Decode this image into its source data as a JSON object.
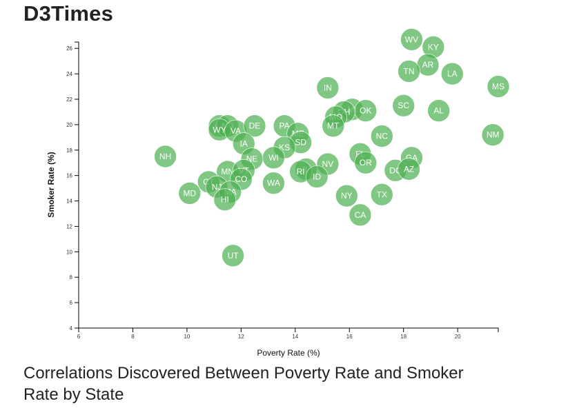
{
  "page": {
    "title": "D3Times",
    "subtitle": "Correlations Discovered Between Poverty Rate and Smoker Rate by State"
  },
  "chart_data": {
    "type": "scatter",
    "xlabel": "Poverty Rate (%)",
    "ylabel": "Smoker Rate (%)",
    "xlim": [
      6,
      21.5
    ],
    "ylim": [
      4,
      26.5
    ],
    "x_ticks": [
      6,
      8,
      10,
      12,
      14,
      16,
      18,
      20
    ],
    "y_ticks": [
      4,
      6,
      8,
      10,
      12,
      14,
      16,
      18,
      20,
      22,
      24,
      26
    ],
    "grid": false,
    "colors": {
      "point": "#4caf50",
      "label": "#ffffff"
    },
    "points": [
      {
        "label": "WV",
        "x": 18.3,
        "y": 26.7
      },
      {
        "label": "KY",
        "x": 19.1,
        "y": 26.1
      },
      {
        "label": "AR",
        "x": 18.9,
        "y": 24.7
      },
      {
        "label": "TN",
        "x": 18.2,
        "y": 24.2
      },
      {
        "label": "LA",
        "x": 19.8,
        "y": 24.0
      },
      {
        "label": "MS",
        "x": 21.5,
        "y": 23.0
      },
      {
        "label": "IN",
        "x": 15.2,
        "y": 22.9
      },
      {
        "label": "SC",
        "x": 18.0,
        "y": 21.5
      },
      {
        "label": "AL",
        "x": 19.3,
        "y": 21.1
      },
      {
        "label": "MI",
        "x": 16.1,
        "y": 21.2
      },
      {
        "label": "OK",
        "x": 16.6,
        "y": 21.1
      },
      {
        "label": "OH",
        "x": 15.8,
        "y": 21.0
      },
      {
        "label": "MO",
        "x": 15.5,
        "y": 20.6
      },
      {
        "label": "MT",
        "x": 15.4,
        "y": 19.9
      },
      {
        "label": "NM",
        "x": 21.3,
        "y": 19.2
      },
      {
        "label": "NC",
        "x": 17.2,
        "y": 19.1
      },
      {
        "label": "AK",
        "x": 11.2,
        "y": 19.9
      },
      {
        "label": "ND",
        "x": 11.5,
        "y": 19.9
      },
      {
        "label": "WY",
        "x": 11.2,
        "y": 19.6
      },
      {
        "label": "VA",
        "x": 11.8,
        "y": 19.5
      },
      {
        "label": "DE",
        "x": 12.5,
        "y": 19.9
      },
      {
        "label": "PA",
        "x": 13.6,
        "y": 19.9
      },
      {
        "label": "ME",
        "x": 14.1,
        "y": 19.3
      },
      {
        "label": "SD",
        "x": 14.2,
        "y": 18.6
      },
      {
        "label": "IA",
        "x": 12.1,
        "y": 18.5
      },
      {
        "label": "KS",
        "x": 13.6,
        "y": 18.2
      },
      {
        "label": "WI",
        "x": 13.2,
        "y": 17.4
      },
      {
        "label": "NE",
        "x": 12.4,
        "y": 17.3
      },
      {
        "label": "NH",
        "x": 9.2,
        "y": 17.5
      },
      {
        "label": "FL",
        "x": 16.4,
        "y": 17.7
      },
      {
        "label": "GA",
        "x": 18.3,
        "y": 17.4
      },
      {
        "label": "OR",
        "x": 16.6,
        "y": 17.0
      },
      {
        "label": "NV",
        "x": 15.2,
        "y": 16.9
      },
      {
        "label": "DC",
        "x": 17.7,
        "y": 16.4
      },
      {
        "label": "AZ",
        "x": 18.2,
        "y": 16.5
      },
      {
        "label": "IL",
        "x": 14.4,
        "y": 16.5
      },
      {
        "label": "RI",
        "x": 14.2,
        "y": 16.3
      },
      {
        "label": "ID",
        "x": 14.8,
        "y": 15.9
      },
      {
        "label": "MN",
        "x": 11.5,
        "y": 16.3
      },
      {
        "label": "VT",
        "x": 12.1,
        "y": 16.4
      },
      {
        "label": "CO",
        "x": 12.0,
        "y": 15.7
      },
      {
        "label": "CT",
        "x": 10.8,
        "y": 15.5
      },
      {
        "label": "NJ",
        "x": 11.1,
        "y": 15.1
      },
      {
        "label": "WA",
        "x": 13.2,
        "y": 15.4
      },
      {
        "label": "MD",
        "x": 10.1,
        "y": 14.6
      },
      {
        "label": "MA",
        "x": 11.6,
        "y": 14.7
      },
      {
        "label": "HI",
        "x": 11.4,
        "y": 14.1
      },
      {
        "label": "NY",
        "x": 15.9,
        "y": 14.4
      },
      {
        "label": "TX",
        "x": 17.2,
        "y": 14.5
      },
      {
        "label": "CA",
        "x": 16.4,
        "y": 12.9
      },
      {
        "label": "UT",
        "x": 11.7,
        "y": 9.7
      }
    ]
  }
}
